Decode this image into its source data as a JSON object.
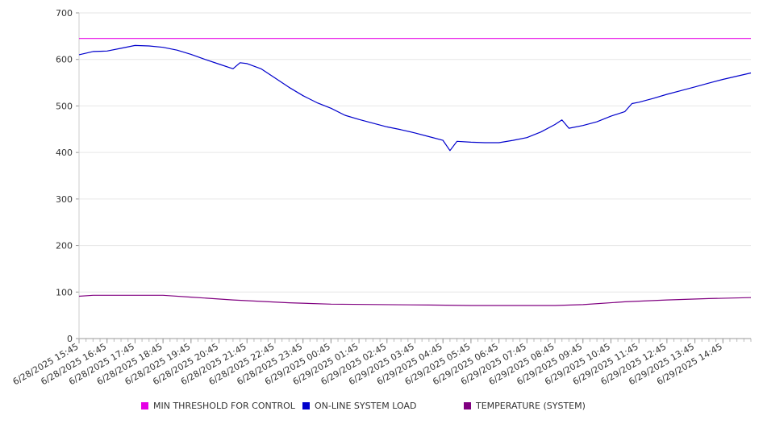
{
  "chart_data": {
    "type": "line",
    "title": "",
    "xlabel": "",
    "ylabel": "",
    "ylim": [
      0,
      700
    ],
    "yticks": [
      "0",
      "100",
      "200",
      "300",
      "400",
      "500",
      "600",
      "700"
    ],
    "grid": true,
    "legend_position": "bottom",
    "categories": [
      "6/28/2025 15:45",
      "6/28/2025 16:45",
      "6/28/2025 17:45",
      "6/28/2025 18:45",
      "6/28/2025 19:45",
      "6/28/2025 20:45",
      "6/28/2025 21:45",
      "6/28/2025 22:45",
      "6/28/2025 23:45",
      "6/29/2025 00:45",
      "6/29/2025 01:45",
      "6/29/2025 02:45",
      "6/29/2025 03:45",
      "6/29/2025 04:45",
      "6/29/2025 05:45",
      "6/29/2025 06:45",
      "6/29/2025 07:45",
      "6/29/2025 08:45",
      "6/29/2025 09:45",
      "6/29/2025 10:45",
      "6/29/2025 11:45",
      "6/29/2025 12:45",
      "6/29/2025 13:45",
      "6/29/2025 14:45"
    ],
    "x_end": "6/29/2025 15:45",
    "series": [
      {
        "name": "MIN THRESHOLD FOR CONTROL",
        "color": "#e600e6",
        "points": [
          [
            "6/28/2025 15:45",
            645
          ],
          [
            "6/29/2025 15:45",
            645
          ]
        ]
      },
      {
        "name": "ON-LINE SYSTEM LOAD",
        "color": "#0000cc",
        "points": [
          [
            "6/28/2025 15:45",
            610
          ],
          [
            "6/28/2025 16:15",
            617
          ],
          [
            "6/28/2025 16:45",
            618
          ],
          [
            "6/28/2025 17:15",
            624
          ],
          [
            "6/28/2025 17:45",
            630
          ],
          [
            "6/28/2025 18:15",
            629
          ],
          [
            "6/28/2025 18:45",
            626
          ],
          [
            "6/28/2025 19:15",
            620
          ],
          [
            "6/28/2025 19:45",
            611
          ],
          [
            "6/28/2025 20:15",
            600
          ],
          [
            "6/28/2025 20:45",
            590
          ],
          [
            "6/28/2025 21:15",
            580
          ],
          [
            "6/28/2025 21:30",
            593
          ],
          [
            "6/28/2025 21:45",
            591
          ],
          [
            "6/28/2025 22:15",
            580
          ],
          [
            "6/28/2025 22:45",
            560
          ],
          [
            "6/28/2025 23:15",
            540
          ],
          [
            "6/28/2025 23:45",
            522
          ],
          [
            "6/29/2025 00:15",
            507
          ],
          [
            "6/29/2025 00:45",
            495
          ],
          [
            "6/29/2025 01:15",
            480
          ],
          [
            "6/29/2025 01:45",
            471
          ],
          [
            "6/29/2025 02:15",
            463
          ],
          [
            "6/29/2025 02:45",
            455
          ],
          [
            "6/29/2025 03:15",
            449
          ],
          [
            "6/29/2025 03:45",
            442
          ],
          [
            "6/29/2025 04:15",
            434
          ],
          [
            "6/29/2025 04:45",
            426
          ],
          [
            "6/29/2025 05:00",
            404
          ],
          [
            "6/29/2025 05:15",
            424
          ],
          [
            "6/29/2025 05:45",
            422
          ],
          [
            "6/29/2025 06:15",
            421
          ],
          [
            "6/29/2025 06:45",
            421
          ],
          [
            "6/29/2025 07:15",
            426
          ],
          [
            "6/29/2025 07:45",
            432
          ],
          [
            "6/29/2025 08:15",
            444
          ],
          [
            "6/29/2025 08:45",
            460
          ],
          [
            "6/29/2025 09:00",
            470
          ],
          [
            "6/29/2025 09:15",
            452
          ],
          [
            "6/29/2025 09:45",
            458
          ],
          [
            "6/29/2025 10:15",
            466
          ],
          [
            "6/29/2025 10:45",
            478
          ],
          [
            "6/29/2025 11:15",
            488
          ],
          [
            "6/29/2025 11:30",
            505
          ],
          [
            "6/29/2025 11:45",
            508
          ],
          [
            "6/29/2025 12:15",
            516
          ],
          [
            "6/29/2025 12:45",
            525
          ],
          [
            "6/29/2025 13:15",
            533
          ],
          [
            "6/29/2025 13:45",
            541
          ],
          [
            "6/29/2025 14:15",
            549
          ],
          [
            "6/29/2025 14:45",
            557
          ],
          [
            "6/29/2025 15:15",
            564
          ],
          [
            "6/29/2025 15:45",
            571
          ]
        ]
      },
      {
        "name": "TEMPERATURE (SYSTEM)",
        "color": "#800080",
        "points": [
          [
            "6/28/2025 15:45",
            91
          ],
          [
            "6/28/2025 16:15",
            93
          ],
          [
            "6/28/2025 18:45",
            93
          ],
          [
            "6/28/2025 19:45",
            89
          ],
          [
            "6/28/2025 21:15",
            83
          ],
          [
            "6/28/2025 23:15",
            77
          ],
          [
            "6/29/2025 00:45",
            74
          ],
          [
            "6/29/2025 04:15",
            72
          ],
          [
            "6/29/2025 05:45",
            71
          ],
          [
            "6/29/2025 08:45",
            71
          ],
          [
            "6/29/2025 09:45",
            73
          ],
          [
            "6/29/2025 11:15",
            79
          ],
          [
            "6/29/2025 12:45",
            83
          ],
          [
            "6/29/2025 14:15",
            86
          ],
          [
            "6/29/2025 15:45",
            88
          ]
        ]
      }
    ]
  }
}
